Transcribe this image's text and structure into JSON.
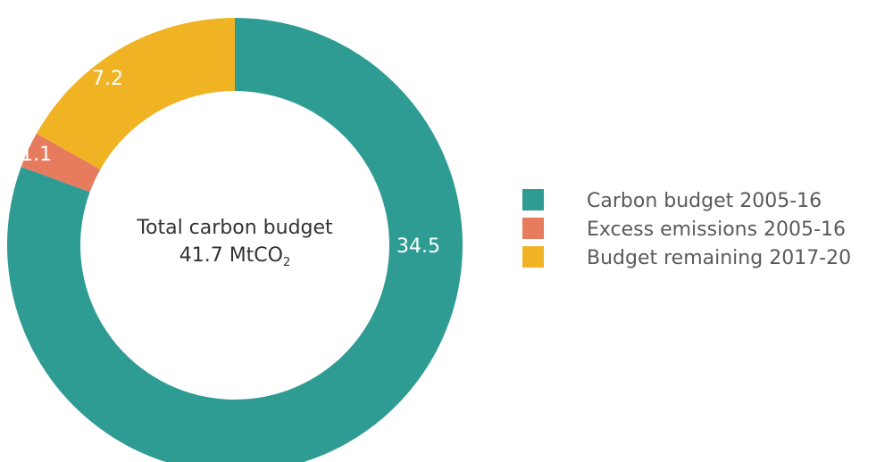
{
  "chart_data": {
    "type": "pie",
    "style": "donut",
    "center_label": {
      "line1": "Total carbon budget",
      "line2_main": "41.7 MtCO",
      "line2_sub": "2"
    },
    "slices": [
      {
        "name": "Carbon budget 2005-16",
        "value": 34.5,
        "label": "34.5",
        "color": "#2e9c93"
      },
      {
        "name": "Excess emissions 2005-16",
        "value": 1.1,
        "label": "1.1",
        "color": "#e67b5e"
      },
      {
        "name": "Budget remaining 2017-20",
        "value": 7.2,
        "label": "7.2",
        "color": "#f0b323"
      }
    ],
    "legend_position": "right"
  }
}
